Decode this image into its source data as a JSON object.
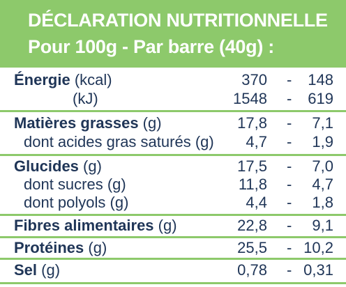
{
  "header": {
    "title": "DÉCLARATION NUTRITIONNELLE",
    "subtitle": "Pour 100g - Par barre (40g) :"
  },
  "rows": [
    {
      "name": "Énergie",
      "unit": " (kcal)",
      "v1": "370",
      "v2": "148"
    },
    {
      "name": "",
      "unit": "(kJ)",
      "v1": "1548",
      "v2": "619"
    },
    {
      "name": "Matières grasses",
      "unit": " (g)",
      "v1": "17,8",
      "v2": "7,1"
    },
    {
      "name": "dont acides gras saturés",
      "unit": " (g)",
      "v1": "4,7",
      "v2": "1,9"
    },
    {
      "name": "Glucides",
      "unit": " (g)",
      "v1": "17,5",
      "v2": "7,0"
    },
    {
      "name": "dont sucres",
      "unit": " (g)",
      "v1": "11,8",
      "v2": "4,7"
    },
    {
      "name": "dont polyols",
      "unit": " (g)",
      "v1": "4,4",
      "v2": "1,8"
    },
    {
      "name": "Fibres alimentaires",
      "unit": " (g)",
      "v1": "22,8",
      "v2": "9,1"
    },
    {
      "name": "Protéines",
      "unit": " (g)",
      "v1": "25,5",
      "v2": "10,2"
    },
    {
      "name": "Sel",
      "unit": " (g)",
      "v1": "0,78",
      "v2": "0,31"
    }
  ],
  "separator": "-",
  "colors": {
    "accent": "#8dc96b",
    "text": "#1f3557",
    "background": "#ffffff"
  }
}
